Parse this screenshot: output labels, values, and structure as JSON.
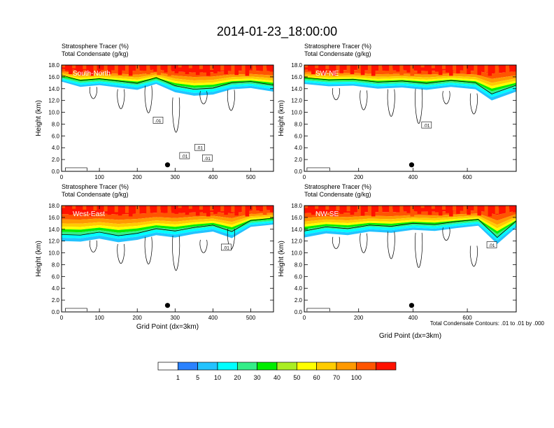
{
  "title": "2014-01-23_18:00:00",
  "panel_header": {
    "line1": "Stratosphere Tracer   (%)",
    "line2": "Total Condensate   (g/kg)"
  },
  "footnote": "Total Condensate Contours: .01 to .01 by .000",
  "colorbar": {
    "colors": [
      "#ffffff",
      "#2b82ff",
      "#22c3ff",
      "#00ffff",
      "#33ee88",
      "#00ee00",
      "#aaee22",
      "#ffff00",
      "#ffcc00",
      "#ff9900",
      "#ff5500",
      "#ff1100"
    ],
    "labels": [
      "1",
      "5",
      "10",
      "20",
      "30",
      "40",
      "50",
      "60",
      "70",
      "100"
    ]
  },
  "chart_data": [
    {
      "type": "heatmap",
      "panel": "South-North",
      "title": "South-North",
      "ylabel": "Height (km)",
      "xlabel": "",
      "xlim": [
        0,
        560
      ],
      "ylim": [
        0,
        18
      ],
      "xticks": [
        0,
        100,
        200,
        300,
        400,
        500
      ],
      "yticks": [
        "0.0",
        "2.0",
        "4.0",
        "6.0",
        "8.0",
        "10.0",
        "12.0",
        "14.0",
        "16.0",
        "18.0"
      ],
      "contour_labels": [
        ".01",
        ".01",
        ".01",
        ".01"
      ],
      "marker": {
        "x": 280,
        "y": 1.1
      },
      "tracer_base_km": [
        15.2,
        14.3,
        14.6,
        14.2,
        13.8,
        14.8,
        13.4,
        12.8,
        13.0,
        13.9,
        14.1,
        13.5
      ],
      "tracer_base_x": [
        0,
        50,
        100,
        150,
        200,
        250,
        300,
        350,
        400,
        450,
        500,
        560
      ]
    },
    {
      "type": "heatmap",
      "panel": "SW-NE",
      "title": "SW-NE",
      "ylabel": "Height (km)",
      "xlabel": "",
      "xlim": [
        0,
        780
      ],
      "ylim": [
        0,
        18
      ],
      "xticks": [
        0,
        200,
        400,
        600
      ],
      "yticks": [
        "0.0",
        "2.0",
        "4.0",
        "6.0",
        "8.0",
        "10.0",
        "12.0",
        "14.0",
        "16.0",
        "18.0"
      ],
      "contour_labels": [
        ".01"
      ],
      "marker": {
        "x": 395,
        "y": 1.1
      },
      "tracer_base_km": [
        14.8,
        14.4,
        14.5,
        14.0,
        14.2,
        13.8,
        14.3,
        13.9,
        12.0,
        13.5
      ],
      "tracer_base_x": [
        0,
        90,
        180,
        270,
        360,
        450,
        540,
        630,
        690,
        780
      ]
    },
    {
      "type": "heatmap",
      "panel": "West-East",
      "title": "West-East",
      "ylabel": "Height (km)",
      "xlabel": "Grid Point (dx=3km)",
      "xlim": [
        0,
        560
      ],
      "ylim": [
        0,
        18
      ],
      "xticks": [
        0,
        100,
        200,
        300,
        400,
        500
      ],
      "yticks": [
        "0.0",
        "2.0",
        "4.0",
        "6.0",
        "8.0",
        "10.0",
        "12.0",
        "14.0",
        "16.0",
        "18.0"
      ],
      "contour_labels": [
        ".01"
      ],
      "marker": {
        "x": 280,
        "y": 1.1
      },
      "tracer_base_km": [
        12.0,
        11.9,
        12.4,
        11.8,
        12.2,
        13.0,
        12.6,
        13.2,
        13.6,
        12.5,
        14.4,
        14.8
      ],
      "tracer_base_x": [
        0,
        50,
        100,
        150,
        200,
        250,
        300,
        350,
        400,
        450,
        500,
        560
      ]
    },
    {
      "type": "heatmap",
      "panel": "NW-SE",
      "title": "NW-SE",
      "ylabel": "Height (km)",
      "xlabel": "Grid Point (dx=3km)",
      "xlim": [
        0,
        780
      ],
      "ylim": [
        0,
        18
      ],
      "xticks": [
        0,
        200,
        400,
        600
      ],
      "yticks": [
        "0.0",
        "2.0",
        "4.0",
        "6.0",
        "8.0",
        "10.0",
        "12.0",
        "14.0",
        "16.0",
        "18.0"
      ],
      "contour_labels": [
        ".01"
      ],
      "marker": {
        "x": 395,
        "y": 1.1
      },
      "tracer_base_km": [
        12.6,
        13.3,
        13.0,
        13.6,
        13.4,
        13.9,
        13.7,
        14.2,
        14.6,
        11.5,
        14.3
      ],
      "tracer_base_x": [
        0,
        80,
        160,
        240,
        320,
        400,
        480,
        560,
        640,
        710,
        780
      ]
    }
  ]
}
